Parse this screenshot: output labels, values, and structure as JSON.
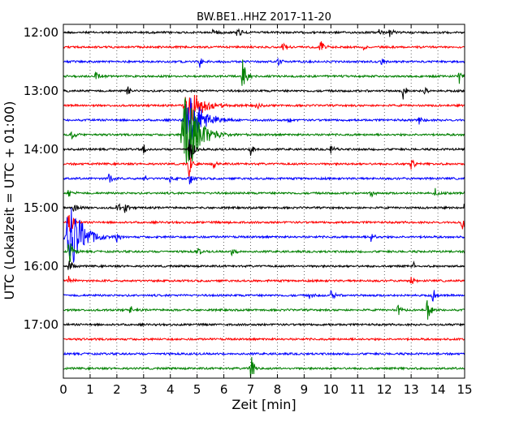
{
  "chart_data": {
    "type": "line",
    "title": "BW.BE1..HHZ 2017-11-20",
    "xlabel": "Zeit  [min]",
    "ylabel": "UTC (Lokalzeit = UTC + 01:00)",
    "xlim": [
      0,
      15
    ],
    "x_ticks": [
      "0",
      "1",
      "2",
      "3",
      "4",
      "5",
      "6",
      "7",
      "8",
      "9",
      "10",
      "11",
      "12",
      "13",
      "14",
      "15"
    ],
    "y_ticks": [
      "12:00",
      "13:00",
      "14:00",
      "15:00",
      "16:00",
      "17:00"
    ],
    "grid": true,
    "trace_colors": [
      "#000000",
      "#ff0000",
      "#0000ff",
      "#008000"
    ],
    "traces": [
      {
        "start": "12:00",
        "events": [
          {
            "min": 5.6,
            "amp": 0.4
          },
          {
            "min": 6.5,
            "amp": 0.6
          },
          {
            "min": 11.8,
            "amp": 0.35
          },
          {
            "min": 12.2,
            "amp": 0.35
          }
        ]
      },
      {
        "start": "12:15",
        "events": [
          {
            "min": 8.2,
            "amp": 0.45
          },
          {
            "min": 9.6,
            "amp": 0.9
          },
          {
            "min": 11.2,
            "amp": 0.4
          }
        ]
      },
      {
        "start": "12:30",
        "events": [
          {
            "min": 5.1,
            "amp": 0.5
          },
          {
            "min": 8.0,
            "amp": 0.6
          },
          {
            "min": 11.9,
            "amp": 0.35
          }
        ]
      },
      {
        "start": "12:45",
        "events": [
          {
            "min": 1.2,
            "amp": 0.45
          },
          {
            "min": 6.7,
            "amp": 1.5
          },
          {
            "min": 14.8,
            "amp": 0.6
          }
        ]
      },
      {
        "start": "13:00",
        "events": [
          {
            "min": 2.4,
            "amp": 0.45
          },
          {
            "min": 12.7,
            "amp": 0.9
          },
          {
            "min": 13.5,
            "amp": 0.4
          }
        ]
      },
      {
        "start": "13:15",
        "events": [
          {
            "min": 4.7,
            "amp": 1.8
          },
          {
            "min": 7.2,
            "amp": 0.35
          }
        ]
      },
      {
        "start": "13:30",
        "events": [
          {
            "min": 4.7,
            "amp": 2.5
          },
          {
            "min": 8.4,
            "amp": 0.35
          },
          {
            "min": 13.3,
            "amp": 0.35
          }
        ]
      },
      {
        "start": "13:45",
        "events": [
          {
            "min": 0.3,
            "amp": 0.5
          },
          {
            "min": 4.6,
            "amp": 3.5
          }
        ]
      },
      {
        "start": "14:00",
        "events": [
          {
            "min": 3.0,
            "amp": 0.4
          },
          {
            "min": 4.7,
            "amp": 1.5
          },
          {
            "min": 7.0,
            "amp": 0.5
          },
          {
            "min": 10.0,
            "amp": 0.4
          }
        ]
      },
      {
        "start": "14:15",
        "events": [
          {
            "min": 4.7,
            "amp": 1.2
          },
          {
            "min": 5.6,
            "amp": 0.45
          },
          {
            "min": 13.0,
            "amp": 0.45
          }
        ]
      },
      {
        "start": "14:30",
        "events": [
          {
            "min": 1.7,
            "amp": 0.6
          },
          {
            "min": 3.0,
            "amp": 0.35
          },
          {
            "min": 4.0,
            "amp": 0.35
          },
          {
            "min": 4.7,
            "amp": 1.0
          }
        ]
      },
      {
        "start": "14:45",
        "events": [
          {
            "min": 0.2,
            "amp": 0.5
          },
          {
            "min": 11.5,
            "amp": 0.35
          },
          {
            "min": 13.9,
            "amp": 0.45
          }
        ]
      },
      {
        "start": "15:00",
        "events": [
          {
            "min": 0.4,
            "amp": 0.6
          },
          {
            "min": 2.0,
            "amp": 0.5
          },
          {
            "min": 2.3,
            "amp": 0.4
          },
          {
            "min": 15.0,
            "amp": 0.6
          }
        ]
      },
      {
        "start": "15:15",
        "events": [
          {
            "min": 0.2,
            "amp": 1.5
          },
          {
            "min": 6.2,
            "amp": 0.35
          },
          {
            "min": 14.9,
            "amp": 0.8
          }
        ]
      },
      {
        "start": "15:30",
        "events": [
          {
            "min": 0.25,
            "amp": 3.0
          },
          {
            "min": 2.0,
            "amp": 0.4
          },
          {
            "min": 11.5,
            "amp": 0.4
          }
        ]
      },
      {
        "start": "15:45",
        "events": [
          {
            "min": 0.2,
            "amp": 1.2
          },
          {
            "min": 5.0,
            "amp": 0.45
          },
          {
            "min": 6.3,
            "amp": 0.35
          }
        ]
      },
      {
        "start": "16:00",
        "events": [
          {
            "min": 0.2,
            "amp": 0.7
          },
          {
            "min": 13.1,
            "amp": 0.35
          }
        ]
      },
      {
        "start": "16:15",
        "events": [
          {
            "min": 0.2,
            "amp": 0.6
          },
          {
            "min": 13.0,
            "amp": 0.4
          }
        ]
      },
      {
        "start": "16:30",
        "events": [
          {
            "min": 9.2,
            "amp": 0.35
          },
          {
            "min": 10.0,
            "amp": 0.6
          },
          {
            "min": 13.8,
            "amp": 0.6
          }
        ]
      },
      {
        "start": "16:45",
        "events": [
          {
            "min": 2.5,
            "amp": 0.35
          },
          {
            "min": 12.5,
            "amp": 0.5
          },
          {
            "min": 13.6,
            "amp": 1.0
          }
        ]
      },
      {
        "start": "17:00",
        "events": []
      },
      {
        "start": "17:15",
        "events": []
      },
      {
        "start": "17:30",
        "events": []
      },
      {
        "start": "17:45",
        "events": [
          {
            "min": 7.0,
            "amp": 1.2
          }
        ]
      }
    ]
  }
}
